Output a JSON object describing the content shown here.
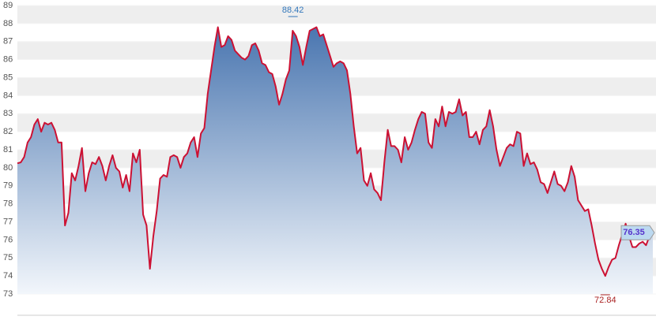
{
  "chart_data": {
    "type": "area",
    "values": [
      80.25,
      80.3,
      80.6,
      81.4,
      81.7,
      82.4,
      82.7,
      82.0,
      82.5,
      82.4,
      82.5,
      82.1,
      81.4,
      81.4,
      76.8,
      77.5,
      79.7,
      79.3,
      80.1,
      81.1,
      78.7,
      79.7,
      80.3,
      80.2,
      80.6,
      80.1,
      79.3,
      80.1,
      80.7,
      80.0,
      79.8,
      78.9,
      79.6,
      78.7,
      80.8,
      80.3,
      81.0,
      77.4,
      76.8,
      74.4,
      76.2,
      77.6,
      79.4,
      79.6,
      79.5,
      80.6,
      80.7,
      80.6,
      80.0,
      80.6,
      80.8,
      81.4,
      81.7,
      80.6,
      81.9,
      82.2,
      84.1,
      85.4,
      86.7,
      87.8,
      86.7,
      86.8,
      87.3,
      87.1,
      86.5,
      86.3,
      86.1,
      86.0,
      86.2,
      86.8,
      86.9,
      86.5,
      85.8,
      85.7,
      85.3,
      85.2,
      84.5,
      83.5,
      84.1,
      84.9,
      85.4,
      87.6,
      87.3,
      86.7,
      85.7,
      86.7,
      87.6,
      87.7,
      87.8,
      87.3,
      87.4,
      86.8,
      86.2,
      85.6,
      85.8,
      85.9,
      85.8,
      85.4,
      84.1,
      82.3,
      80.8,
      81.1,
      79.3,
      79.0,
      79.7,
      78.8,
      78.6,
      78.2,
      80.3,
      82.1,
      81.2,
      81.2,
      81.0,
      80.3,
      81.7,
      81.0,
      81.4,
      82.1,
      82.7,
      83.1,
      83.0,
      81.4,
      81.1,
      82.7,
      82.3,
      83.4,
      82.3,
      83.1,
      83.0,
      83.1,
      83.8,
      82.9,
      83.1,
      81.7,
      81.7,
      82.0,
      81.3,
      82.1,
      82.3,
      83.2,
      82.3,
      81.0,
      80.1,
      80.6,
      81.1,
      81.3,
      81.2,
      82.0,
      81.9,
      80.1,
      80.8,
      80.2,
      80.3,
      79.9,
      79.2,
      79.1,
      78.6,
      79.2,
      79.8,
      79.1,
      79.0,
      78.7,
      79.2,
      80.1,
      79.5,
      78.2,
      77.9,
      77.6,
      77.7,
      76.8,
      75.8,
      74.9,
      74.4,
      74.0,
      74.5,
      74.9,
      75.0,
      75.7,
      76.3,
      76.9,
      76.2,
      75.6,
      75.6,
      75.8,
      75.9,
      75.7,
      76.2,
      76.4
    ],
    "color": "#cc1133",
    "fill_top": "#4a76b0",
    "fill_bottom": "#f2f6fb",
    "ylim": [
      73,
      89
    ],
    "yticks": [
      73,
      74,
      75,
      76,
      77,
      78,
      79,
      80,
      81,
      82,
      83,
      84,
      85,
      86,
      87,
      88,
      89
    ],
    "grid": true,
    "max_label": "88.42",
    "min_label": "72.84",
    "last_label": "76.35"
  }
}
